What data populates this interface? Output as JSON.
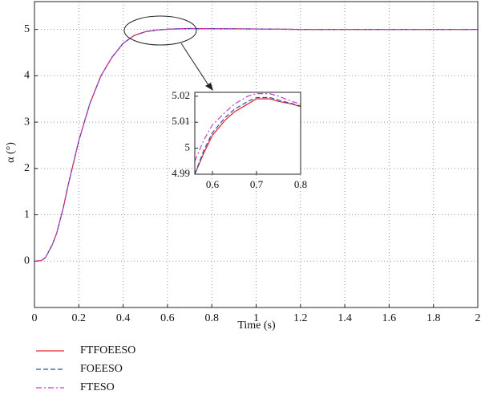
{
  "chart_data": [
    {
      "type": "line",
      "x_label": "Time (s)",
      "y_label": "α (°)",
      "x": [
        0,
        0.03,
        0.05,
        0.08,
        0.1,
        0.13,
        0.15,
        0.18,
        0.2,
        0.25,
        0.3,
        0.35,
        0.4,
        0.45,
        0.5,
        0.55,
        0.6,
        0.7,
        0.8,
        1,
        1.2,
        1.4,
        1.6,
        1.8,
        2
      ],
      "series": [
        {
          "name": "FTFOEESO",
          "color": "#e8202a",
          "style": "solid",
          "values": [
            0,
            0.01,
            0.08,
            0.35,
            0.6,
            1.15,
            1.6,
            2.2,
            2.6,
            3.4,
            4.0,
            4.4,
            4.7,
            4.87,
            4.95,
            4.985,
            5.005,
            5.019,
            5.016,
            5.01,
            5.0,
            5.0,
            5.0,
            5.0,
            5.0
          ]
        },
        {
          "name": "FOEESO",
          "color": "#2b4fa8",
          "style": "dashed",
          "values": [
            0,
            0.01,
            0.08,
            0.35,
            0.6,
            1.15,
            1.6,
            2.2,
            2.6,
            3.4,
            4.0,
            4.4,
            4.7,
            4.87,
            4.95,
            4.985,
            5.006,
            5.02,
            5.016,
            5.01,
            5.0,
            5.0,
            5.0,
            5.0,
            5.0
          ]
        },
        {
          "name": "FTESO",
          "color": "#c040c8",
          "style": "dashdot",
          "values": [
            0,
            0.01,
            0.08,
            0.35,
            0.6,
            1.15,
            1.6,
            2.2,
            2.6,
            3.4,
            4.0,
            4.4,
            4.7,
            4.87,
            4.95,
            4.987,
            5.009,
            5.021,
            5.017,
            5.01,
            5.0,
            5.0,
            5.0,
            5.0,
            5.0
          ]
        }
      ],
      "xlim": [
        0,
        2
      ],
      "xticks": [
        0,
        0.2,
        0.4,
        0.6,
        0.8,
        1,
        1.2,
        1.4,
        1.6,
        1.8,
        2
      ],
      "ylim": [
        -1,
        5.6
      ],
      "yticks": [
        0,
        1,
        2,
        3,
        4,
        5
      ],
      "grid": true,
      "legend": "bottom"
    },
    {
      "type": "line",
      "x": [
        0.56,
        0.58,
        0.6,
        0.63,
        0.65,
        0.68,
        0.7,
        0.73,
        0.75,
        0.78,
        0.8
      ],
      "series": [
        {
          "color": "#e8202a",
          "style": "solid",
          "values": [
            4.99,
            4.998,
            5.005,
            5.011,
            5.014,
            5.017,
            5.019,
            5.019,
            5.018,
            5.017,
            5.016
          ]
        },
        {
          "color": "#2b4fa8",
          "style": "dashed",
          "values": [
            4.99,
            4.999,
            5.006,
            5.012,
            5.015,
            5.018,
            5.0195,
            5.0195,
            5.0185,
            5.0172,
            5.0162
          ]
        },
        {
          "color": "#c040c8",
          "style": "dashdot",
          "values": [
            4.995,
            5.003,
            5.009,
            5.014,
            5.017,
            5.02,
            5.021,
            5.021,
            5.02,
            5.018,
            5.017
          ]
        }
      ],
      "xlim": [
        0.56,
        0.8
      ],
      "xticks": [
        0.6,
        0.7,
        0.8
      ],
      "ylim": [
        4.99,
        5.0215
      ],
      "yticks": [
        4.99,
        5,
        5.01,
        5.02
      ],
      "grid": false
    }
  ]
}
